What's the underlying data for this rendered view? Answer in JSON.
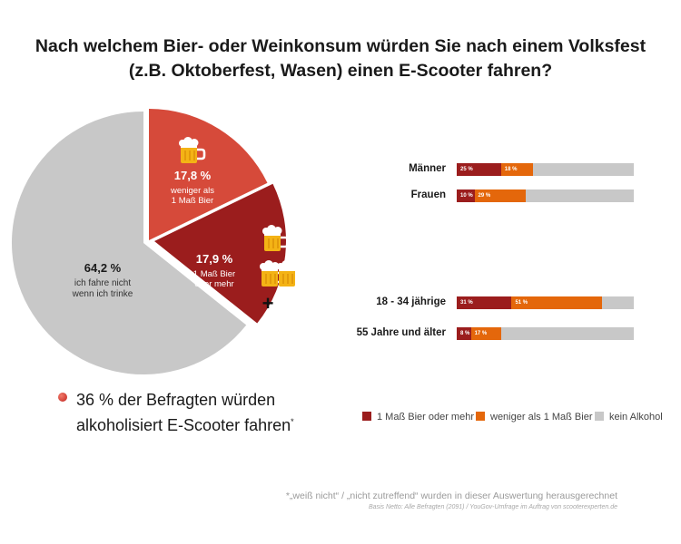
{
  "title_line1": "Nach welchem Bier- oder Weinkonsum würden Sie nach einem Volksfest",
  "title_line2": "(z.B. Oktoberfest, Wasen) einen E-Scooter fahren?",
  "colors": {
    "dark_red": "#9b1d1d",
    "light_red": "#d64a3a",
    "orange": "#e4670b",
    "grey": "#c8c8c8",
    "white": "#ffffff"
  },
  "chart_data": [
    {
      "type": "pie",
      "slices": [
        {
          "label": "17,8 %",
          "value": 17.8,
          "desc1": "weniger als",
          "desc2": "1 Maß Bier",
          "color": "#d64a3a",
          "icon": "beer-mug-icon"
        },
        {
          "label": "17,9 %",
          "value": 17.9,
          "desc1": "1 Maß Bier",
          "desc2": "oder mehr",
          "color": "#9b1d1d",
          "icon": "beer-mugs-plus-icon"
        },
        {
          "label": "64,2 %",
          "value": 64.2,
          "desc1": "ich fahre nicht",
          "desc2": "wenn ich trinke",
          "color": "#c8c8c8"
        }
      ]
    },
    {
      "type": "bar",
      "orientation": "horizontal-stacked",
      "unit": "%",
      "categories": [
        "Männer",
        "Frauen",
        "18 - 34 jährige",
        "55 Jahre und älter"
      ],
      "series": [
        {
          "name": "1 Maß Bier oder mehr",
          "color": "#9b1d1d",
          "values": [
            25,
            10,
            31,
            8
          ],
          "labels": [
            "25 %",
            "10 %",
            "31 %",
            "8 %"
          ]
        },
        {
          "name": "weniger als 1 Maß Bier",
          "color": "#e4670b",
          "values": [
            18,
            29,
            51,
            17
          ],
          "labels": [
            "18 %",
            "29 %",
            "51 %",
            "17 %"
          ]
        },
        {
          "name": "kein Alkohol",
          "color": "#c8c8c8",
          "values": [
            57,
            61,
            18,
            75
          ]
        }
      ],
      "legend_position": "bottom"
    }
  ],
  "summary": {
    "line1": "36 % der Befragten würden",
    "line2": "alkoholisiert E-Scooter fahren",
    "mark": "*"
  },
  "footnote": {
    "mark": "*",
    "text_pre": "„weiß nicht“ / „nicht zutreffend“ wurden in dieser Auswertung herausgerechnet",
    "source": "Basis Netto: Alle Befragten (2091) / YouGov-Umfrage im Auftrag von scooterexperten.de"
  },
  "plus_sign": "+"
}
